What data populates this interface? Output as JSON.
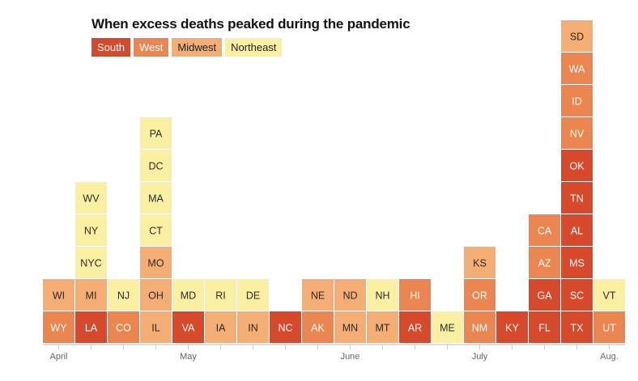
{
  "colors": {
    "South": "#d6492a",
    "West": "#ec8650",
    "Midwest": "#f4ad73",
    "Northeast": "#fbefa2"
  },
  "chart_data": {
    "type": "stacked-unit-columns",
    "title": "When excess deaths peaked during the pandemic",
    "legend": [
      "South",
      "West",
      "Midwest",
      "Northeast"
    ],
    "legend_placement": "top-left",
    "x_axis": {
      "ticks": [
        {
          "col": 0,
          "label": "April"
        },
        {
          "col": 4,
          "label": "May"
        },
        {
          "col": 9,
          "label": "June"
        },
        {
          "col": 13,
          "label": "July"
        },
        {
          "col": 17,
          "label": "Aug."
        }
      ]
    },
    "columns": [
      {
        "col": 0,
        "states": [
          [
            "WY",
            "West"
          ],
          [
            "WI",
            "Midwest"
          ]
        ]
      },
      {
        "col": 1,
        "states": [
          [
            "LA",
            "South"
          ],
          [
            "MI",
            "Midwest"
          ],
          [
            "NYC",
            "Northeast"
          ],
          [
            "NY",
            "Northeast"
          ],
          [
            "WV",
            "Northeast"
          ]
        ]
      },
      {
        "col": 2,
        "states": [
          [
            "CO",
            "West"
          ],
          [
            "NJ",
            "Northeast"
          ]
        ]
      },
      {
        "col": 3,
        "states": [
          [
            "IL",
            "Midwest"
          ],
          [
            "OH",
            "Midwest"
          ],
          [
            "MO",
            "Midwest"
          ],
          [
            "CT",
            "Northeast"
          ],
          [
            "MA",
            "Northeast"
          ],
          [
            "DC",
            "Northeast"
          ],
          [
            "PA",
            "Northeast"
          ]
        ]
      },
      {
        "col": 4,
        "states": [
          [
            "VA",
            "South"
          ],
          [
            "MD",
            "Northeast"
          ]
        ]
      },
      {
        "col": 5,
        "states": [
          [
            "IA",
            "Midwest"
          ],
          [
            "RI",
            "Northeast"
          ]
        ]
      },
      {
        "col": 6,
        "states": [
          [
            "IN",
            "Midwest"
          ],
          [
            "DE",
            "Northeast"
          ]
        ]
      },
      {
        "col": 7,
        "states": [
          [
            "NC",
            "South"
          ]
        ]
      },
      {
        "col": 8,
        "states": [
          [
            "AK",
            "West"
          ],
          [
            "NE",
            "Midwest"
          ]
        ]
      },
      {
        "col": 9,
        "states": [
          [
            "MN",
            "Midwest"
          ],
          [
            "ND",
            "Midwest"
          ]
        ]
      },
      {
        "col": 10,
        "states": [
          [
            "MT",
            "Midwest"
          ],
          [
            "NH",
            "Northeast"
          ]
        ]
      },
      {
        "col": 11,
        "states": [
          [
            "AR",
            "South"
          ],
          [
            "HI",
            "West"
          ]
        ]
      },
      {
        "col": 12,
        "states": [
          [
            "ME",
            "Northeast"
          ]
        ]
      },
      {
        "col": 13,
        "states": [
          [
            "NM",
            "West"
          ],
          [
            "OR",
            "West"
          ],
          [
            "KS",
            "Midwest"
          ]
        ]
      },
      {
        "col": 14,
        "states": [
          [
            "KY",
            "South"
          ]
        ]
      },
      {
        "col": 15,
        "states": [
          [
            "FL",
            "South"
          ],
          [
            "GA",
            "South"
          ],
          [
            "AZ",
            "West"
          ],
          [
            "CA",
            "West"
          ]
        ]
      },
      {
        "col": 16,
        "states": [
          [
            "TX",
            "South"
          ],
          [
            "SC",
            "South"
          ],
          [
            "MS",
            "South"
          ],
          [
            "AL",
            "South"
          ],
          [
            "TN",
            "South"
          ],
          [
            "OK",
            "South"
          ],
          [
            "NV",
            "West"
          ],
          [
            "ID",
            "West"
          ],
          [
            "WA",
            "West"
          ],
          [
            "SD",
            "Midwest"
          ]
        ]
      },
      {
        "col": 17,
        "states": [
          [
            "UT",
            "West"
          ],
          [
            "VT",
            "Northeast"
          ]
        ]
      }
    ]
  }
}
